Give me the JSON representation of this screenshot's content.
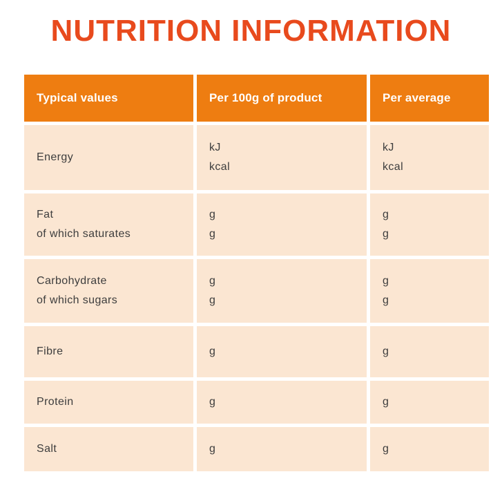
{
  "page": {
    "title": "NUTRITION INFORMATION"
  },
  "colors": {
    "title": "#e84a1d",
    "header_bg": "#ee7d11",
    "header_text": "#ffffff",
    "cell_bg": "#fbe6d2",
    "body_text": "#3d3d3d"
  },
  "table": {
    "headers": [
      "Typical values",
      "Per 100g of product",
      "Per average"
    ],
    "rows": [
      {
        "label": [
          "Energy"
        ],
        "per100g": [
          "kJ",
          "kcal"
        ],
        "per_average": [
          "kJ",
          "kcal"
        ]
      },
      {
        "label": [
          "Fat",
          "of which saturates"
        ],
        "per100g": [
          "g",
          "g"
        ],
        "per_average": [
          "g",
          "g"
        ]
      },
      {
        "label": [
          "Carbohydrate",
          "of which sugars"
        ],
        "per100g": [
          "g",
          "g"
        ],
        "per_average": [
          "g",
          "g"
        ]
      },
      {
        "label": [
          "Fibre"
        ],
        "per100g": [
          "g"
        ],
        "per_average": [
          "g"
        ]
      },
      {
        "label": [
          "Protein"
        ],
        "per100g": [
          "g"
        ],
        "per_average": [
          "g"
        ]
      },
      {
        "label": [
          "Salt"
        ],
        "per100g": [
          "g"
        ],
        "per_average": [
          "g"
        ]
      }
    ]
  }
}
